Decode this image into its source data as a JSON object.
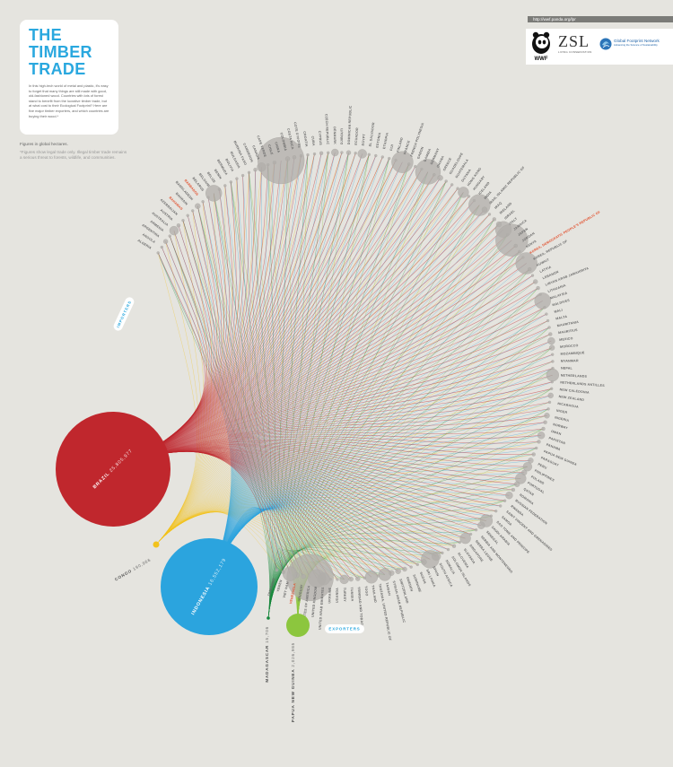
{
  "title": "THE TIMBER TRADE",
  "intro": "In this high-tech world of metal and plastic, it's easy to forget that many things are still made with good, old-fashioned wood. Countries with lots of forest stand to benefit from the lucrative timber trade, but at what cost to their Ecological Footprint? Here are five major timber exporters, and which countries are buying their wood.*",
  "figures_note": "Figures in global hectares.",
  "footnote": "*Figures show legal trade only. Illegal timber trade remains a serious threat to forests, wildlife, and communities.",
  "url": "http://wwf.panda.org/lpr",
  "logos": {
    "wwf": "WWF",
    "zsl": "ZSL",
    "zsl_sub": "LIVING CONSERVATION",
    "gfn": "Global Footprint Network",
    "gfn_sub": "Advancing the Science of Sustainability"
  },
  "colors": {
    "brazil": "#c0272d",
    "congo": "#f2c21b",
    "indonesia": "#2ba4de",
    "madagascar": "#16873c",
    "png": "#8cc63e",
    "importer": "#b0aea9",
    "highlight": "#e24d2a"
  },
  "legend": {
    "importers": "IMPORTERS",
    "exporters": "EXPORTERS"
  },
  "exporters": [
    {
      "name": "BRAZIL",
      "value": "25,805,977",
      "key": "brazil"
    },
    {
      "name": "CONGO",
      "value": "190,966",
      "key": "congo"
    },
    {
      "name": "INDONESIA",
      "value": "16,552,179",
      "key": "indonesia"
    },
    {
      "name": "MADAGASCAR",
      "value": "15,706",
      "key": "madagascar"
    },
    {
      "name": "PAPUA NEW GUINEA",
      "value": "2,026,985",
      "key": "png"
    }
  ],
  "importers": [
    {
      "name": "ALGERIA",
      "value": "",
      "size": 1.5,
      "hl": false
    },
    {
      "name": "ANGOLA",
      "value": "",
      "size": 1.5,
      "hl": false
    },
    {
      "name": "ARGENTINA",
      "value": "",
      "size": 2.5,
      "hl": false
    },
    {
      "name": "ARMENIA",
      "value": "",
      "size": 1.5,
      "hl": false
    },
    {
      "name": "AUSTRALIA",
      "value": "",
      "size": 5,
      "hl": false
    },
    {
      "name": "AUSTRIA",
      "value": "",
      "size": 2,
      "hl": false
    },
    {
      "name": "AZERBAIJAN",
      "value": "",
      "size": 1.5,
      "hl": false
    },
    {
      "name": "BAHAMAS",
      "value": "",
      "size": 1.5,
      "hl": true
    },
    {
      "name": "BAHRAIN",
      "value": "",
      "size": 1.5,
      "hl": false
    },
    {
      "name": "BANGLADESH",
      "value": "",
      "size": 3,
      "hl": false
    },
    {
      "name": "BARBADOS",
      "value": "",
      "size": 1.5,
      "hl": true
    },
    {
      "name": "BELARUS",
      "value": "",
      "size": 1.5,
      "hl": false
    },
    {
      "name": "BELGIUM",
      "value": "",
      "size": 9,
      "hl": false
    },
    {
      "name": "BELIZE",
      "value": "",
      "size": 1.5,
      "hl": false
    },
    {
      "name": "BENIN",
      "value": "",
      "size": 1.5,
      "hl": false
    },
    {
      "name": "BERMUDA",
      "value": "",
      "size": 1.5,
      "hl": false
    },
    {
      "name": "BOLIVIA",
      "value": "",
      "size": 1.5,
      "hl": false
    },
    {
      "name": "BULGARIA",
      "value": "",
      "size": 1.5,
      "hl": false
    },
    {
      "name": "BURKINA FASO",
      "value": "",
      "size": 1.5,
      "hl": false
    },
    {
      "name": "CAMEROON",
      "value": "",
      "size": 2,
      "hl": false
    },
    {
      "name": "CANADA",
      "value": "",
      "size": 5,
      "hl": false
    },
    {
      "name": "CAPE VERDE",
      "value": "",
      "size": 1.5,
      "hl": false
    },
    {
      "name": "CHILE",
      "value": "",
      "size": 2,
      "hl": false
    },
    {
      "name": "CHINA",
      "value": "",
      "size": 26,
      "hl": false
    },
    {
      "name": "COLOMBIA",
      "value": "",
      "size": 2.5,
      "hl": false
    },
    {
      "name": "COSTA RICA",
      "value": "",
      "size": 2,
      "hl": false
    },
    {
      "name": "COTE D'IVOIRE",
      "value": "",
      "size": 1.5,
      "hl": false
    },
    {
      "name": "CROATIA",
      "value": "",
      "size": 1.5,
      "hl": false
    },
    {
      "name": "CUBA",
      "value": "",
      "size": 1.5,
      "hl": false
    },
    {
      "name": "CYPRUS",
      "value": "",
      "size": 2,
      "hl": false
    },
    {
      "name": "CZECH REPUBLIC",
      "value": "",
      "size": 1.5,
      "hl": false
    },
    {
      "name": "DENMARK",
      "value": "",
      "size": 4,
      "hl": false
    },
    {
      "name": "DJIBOUTI",
      "value": "",
      "size": 1.5,
      "hl": false
    },
    {
      "name": "DOMINICAN REPUBLIC",
      "value": "",
      "size": 2.5,
      "hl": false
    },
    {
      "name": "ECUADOR",
      "value": "",
      "size": 1.5,
      "hl": false
    },
    {
      "name": "EGYPT",
      "value": "",
      "size": 5,
      "hl": false
    },
    {
      "name": "EL SALVADOR",
      "value": "",
      "size": 1.5,
      "hl": false
    },
    {
      "name": "ESTONIA",
      "value": "",
      "size": 1.5,
      "hl": false
    },
    {
      "name": "ETHIOPIA",
      "value": "",
      "size": 1.5,
      "hl": false
    },
    {
      "name": "FIJI",
      "value": "",
      "size": 1.5,
      "hl": false
    },
    {
      "name": "FINLAND",
      "value": "",
      "size": 1.5,
      "hl": false
    },
    {
      "name": "FRANCE",
      "value": "",
      "size": 12,
      "hl": false
    },
    {
      "name": "FRENCH POLYNESIA",
      "value": "",
      "size": 1.5,
      "hl": false
    },
    {
      "name": "GABON",
      "value": "",
      "size": 1.5,
      "hl": false
    },
    {
      "name": "GAMBIA",
      "value": "",
      "size": 1.5,
      "hl": false
    },
    {
      "name": "GERMANY",
      "value": "",
      "size": 14,
      "hl": false
    },
    {
      "name": "GHANA",
      "value": "",
      "size": 1.5,
      "hl": false
    },
    {
      "name": "GREECE",
      "value": "",
      "size": 3,
      "hl": false
    },
    {
      "name": "GUADELOUPE",
      "value": "",
      "size": 1.5,
      "hl": false
    },
    {
      "name": "GUATEMALA",
      "value": "",
      "size": 1.5,
      "hl": false
    },
    {
      "name": "GUYANA",
      "value": "",
      "size": 1.5,
      "hl": false
    },
    {
      "name": "HONG KONG",
      "value": "",
      "size": 6,
      "hl": false
    },
    {
      "name": "HUNGARY",
      "value": "",
      "size": 1.5,
      "hl": false
    },
    {
      "name": "ICELAND",
      "value": "",
      "size": 1.5,
      "hl": false
    },
    {
      "name": "INDIA",
      "value": "",
      "size": 12,
      "hl": false
    },
    {
      "name": "IRAN, ISLAMIC REPUBLIC OF",
      "value": "",
      "size": 3,
      "hl": false
    },
    {
      "name": "IRAQ",
      "value": "",
      "size": 1.5,
      "hl": false
    },
    {
      "name": "IRELAND",
      "value": "",
      "size": 2,
      "hl": false
    },
    {
      "name": "ISRAEL",
      "value": "",
      "size": 3,
      "hl": false
    },
    {
      "name": "ITALY",
      "value": "",
      "size": 9,
      "hl": false
    },
    {
      "name": "JAMAICA",
      "value": "",
      "size": 1.5,
      "hl": false
    },
    {
      "name": "JAPAN",
      "value": "",
      "size": 18,
      "hl": false
    },
    {
      "name": "JORDAN",
      "value": "",
      "size": 2,
      "hl": false
    },
    {
      "name": "KENYA",
      "value": "",
      "size": 1.5,
      "hl": false
    },
    {
      "name": "KOREA, DEMOCRATIC PEOPLE'S REPUBLIC OF",
      "value": "",
      "size": 1.5,
      "hl": true
    },
    {
      "name": "KOREA, REPUBLIC OF",
      "value": "",
      "size": 12,
      "hl": false
    },
    {
      "name": "KUWAIT",
      "value": "",
      "size": 2,
      "hl": false
    },
    {
      "name": "LATVIA",
      "value": "",
      "size": 1.5,
      "hl": false
    },
    {
      "name": "LEBANON",
      "value": "",
      "size": 2.5,
      "hl": false
    },
    {
      "name": "LIBYAN ARAB JAMAHIRIYA",
      "value": "",
      "size": 2,
      "hl": false
    },
    {
      "name": "LITHUANIA",
      "value": "",
      "size": 1.5,
      "hl": false
    },
    {
      "name": "MALAYSIA",
      "value": "",
      "size": 9,
      "hl": false
    },
    {
      "name": "MALDIVES",
      "value": "",
      "size": 1.5,
      "hl": false
    },
    {
      "name": "MALI",
      "value": "",
      "size": 1.5,
      "hl": false
    },
    {
      "name": "MALTA",
      "value": "",
      "size": 1.5,
      "hl": false
    },
    {
      "name": "MAURITANIA",
      "value": "",
      "size": 1.5,
      "hl": false
    },
    {
      "name": "MAURITIUS",
      "value": "",
      "size": 2,
      "hl": false
    },
    {
      "name": "MEXICO",
      "value": "",
      "size": 4,
      "hl": false
    },
    {
      "name": "MOROCCO",
      "value": "",
      "size": 3,
      "hl": false
    },
    {
      "name": "MOZAMBIQUE",
      "value": "",
      "size": 1.5,
      "hl": false
    },
    {
      "name": "MYANMAR",
      "value": "",
      "size": 1.5,
      "hl": false
    },
    {
      "name": "NEPAL",
      "value": "",
      "size": 1.5,
      "hl": false
    },
    {
      "name": "NETHERLANDS",
      "value": "",
      "size": 7,
      "hl": false
    },
    {
      "name": "NETHERLANDS ANTILLES",
      "value": "",
      "size": 1.5,
      "hl": false
    },
    {
      "name": "NEW CALEDONIA",
      "value": "",
      "size": 1.5,
      "hl": false
    },
    {
      "name": "NEW ZEALAND",
      "value": "",
      "size": 3,
      "hl": false
    },
    {
      "name": "NICARAGUA",
      "value": "",
      "size": 1.5,
      "hl": false
    },
    {
      "name": "NIGER",
      "value": "",
      "size": 1.5,
      "hl": false
    },
    {
      "name": "NIGERIA",
      "value": "",
      "size": 3,
      "hl": false
    },
    {
      "name": "NORWAY",
      "value": "",
      "size": 2,
      "hl": false
    },
    {
      "name": "OMAN",
      "value": "",
      "size": 2,
      "hl": false
    },
    {
      "name": "PAKISTAN",
      "value": "",
      "size": 4,
      "hl": false
    },
    {
      "name": "PANAMA",
      "value": "",
      "size": 2,
      "hl": false
    },
    {
      "name": "PAPUA NEW GUINEA",
      "value": "",
      "size": 1.5,
      "hl": false
    },
    {
      "name": "PARAGUAY",
      "value": "",
      "size": 2,
      "hl": false
    },
    {
      "name": "PERU",
      "value": "",
      "size": 3,
      "hl": false
    },
    {
      "name": "PHILIPPINES",
      "value": "",
      "size": 5,
      "hl": false
    },
    {
      "name": "POLAND",
      "value": "",
      "size": 3,
      "hl": false
    },
    {
      "name": "PORTUGAL",
      "value": "",
      "size": 6,
      "hl": false
    },
    {
      "name": "QATAR",
      "value": "",
      "size": 3,
      "hl": false
    },
    {
      "name": "ROMANIA",
      "value": "",
      "size": 2,
      "hl": false
    },
    {
      "name": "RUSSIAN FEDERATION",
      "value": "",
      "size": 4,
      "hl": false
    },
    {
      "name": "RWANDA",
      "value": "",
      "size": 1.5,
      "hl": false
    },
    {
      "name": "SAINT VINCENT AND GRENADINES",
      "value": "",
      "size": 1.5,
      "hl": false
    },
    {
      "name": "SAMOA",
      "value": "",
      "size": 1.5,
      "hl": false
    },
    {
      "name": "SAO TOME AND PRINCIPE",
      "value": "",
      "size": 1.5,
      "hl": false
    },
    {
      "name": "SAUDI ARABIA",
      "value": "",
      "size": 7,
      "hl": false
    },
    {
      "name": "SENEGAL",
      "value": "",
      "size": 4,
      "hl": false
    },
    {
      "name": "SERBIA AND MONTENEGRO",
      "value": "",
      "size": 1.5,
      "hl": false
    },
    {
      "name": "SIERRA LEONE",
      "value": "",
      "size": 1.5,
      "hl": false
    },
    {
      "name": "SINGAPORE",
      "value": "",
      "size": 6,
      "hl": false
    },
    {
      "name": "SLOVAKIA",
      "value": "",
      "size": 1.5,
      "hl": false
    },
    {
      "name": "SLOVENIA",
      "value": "",
      "size": 2,
      "hl": false
    },
    {
      "name": "SOLOMON ISLANDS",
      "value": "",
      "size": 1.5,
      "hl": false
    },
    {
      "name": "SOMALIA",
      "value": "",
      "size": 1.5,
      "hl": false
    },
    {
      "name": "SOUTH AFRICA",
      "value": "",
      "size": 5,
      "hl": false
    },
    {
      "name": "SPAIN",
      "value": "",
      "size": 10,
      "hl": false
    },
    {
      "name": "SRI LANKA",
      "value": "",
      "size": 3,
      "hl": false
    },
    {
      "name": "SUDAN",
      "value": "",
      "size": 1.5,
      "hl": false
    },
    {
      "name": "SURINAME",
      "value": "",
      "size": 1.5,
      "hl": false
    },
    {
      "name": "SWEDEN",
      "value": "",
      "size": 2.5,
      "hl": false
    },
    {
      "name": "SWITZERLAND",
      "value": "",
      "size": 3,
      "hl": false
    },
    {
      "name": "SYRIAN ARAB REPUBLIC",
      "value": "",
      "size": 3,
      "hl": false
    },
    {
      "name": "TAIWAN",
      "value": "",
      "size": 7,
      "hl": false
    },
    {
      "name": "TANZANIA, UNITED REPUBLIC OF",
      "value": "",
      "size": 1.5,
      "hl": false
    },
    {
      "name": "THAILAND",
      "value": "",
      "size": 7,
      "hl": false
    },
    {
      "name": "TOGO",
      "value": "",
      "size": 1.5,
      "hl": false
    },
    {
      "name": "TRINIDAD AND TOBAGO",
      "value": "",
      "size": 2.5,
      "hl": false
    },
    {
      "name": "TUNISIA",
      "value": "",
      "size": 2.5,
      "hl": false
    },
    {
      "name": "TURKEY",
      "value": "",
      "size": 5,
      "hl": false
    },
    {
      "name": "UGANDA",
      "value": "",
      "size": 1.5,
      "hl": false
    },
    {
      "name": "UKRAINE",
      "value": "",
      "size": 1.5,
      "hl": false
    },
    {
      "name": "UNITED ARAB EMIRATES",
      "value": "",
      "size": 7,
      "hl": false
    },
    {
      "name": "UNITED KINGDOM",
      "value": "",
      "size": 10,
      "hl": false
    },
    {
      "name": "UNITED STATES OF AMERICA",
      "value": "",
      "size": 26,
      "hl": false
    },
    {
      "name": "URUGUAY",
      "value": "",
      "size": 2.5,
      "hl": false
    },
    {
      "name": "VENEZUELA",
      "value": "",
      "size": 3,
      "hl": true
    },
    {
      "name": "VIET NAM",
      "value": "",
      "size": 8,
      "hl": false
    },
    {
      "name": "YEMEN",
      "value": "",
      "size": 2,
      "hl": false
    },
    {
      "name": "ZIMBABWE",
      "value": "",
      "size": 1.5,
      "hl": false
    }
  ]
}
